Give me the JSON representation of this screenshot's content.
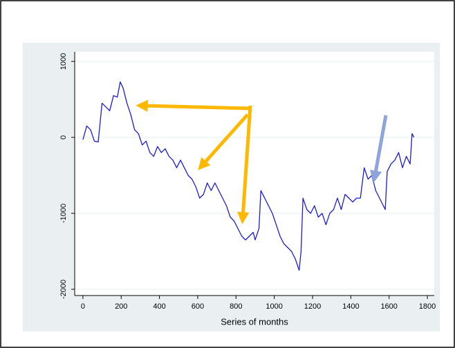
{
  "chart_data": {
    "type": "line",
    "x_label": "Series of months",
    "x": [
      0,
      20,
      40,
      60,
      80,
      100,
      120,
      140,
      160,
      180,
      195,
      210,
      230,
      250,
      270,
      290,
      310,
      330,
      350,
      370,
      390,
      410,
      430,
      450,
      470,
      490,
      510,
      530,
      550,
      570,
      590,
      610,
      630,
      650,
      670,
      690,
      710,
      730,
      750,
      770,
      790,
      810,
      830,
      850,
      870,
      890,
      900,
      920,
      930,
      950,
      970,
      990,
      1010,
      1030,
      1050,
      1070,
      1090,
      1110,
      1130,
      1140,
      1150,
      1170,
      1190,
      1210,
      1230,
      1250,
      1270,
      1290,
      1310,
      1330,
      1350,
      1370,
      1390,
      1410,
      1430,
      1450,
      1470,
      1490,
      1510,
      1530,
      1550,
      1570,
      1580,
      1590,
      1610,
      1630,
      1650,
      1670,
      1690,
      1710,
      1720,
      1730
    ],
    "series": [
      {
        "color": "#1a1adb",
        "values": [
          -30,
          150,
          100,
          -50,
          -60,
          450,
          400,
          350,
          550,
          530,
          730,
          650,
          450,
          300,
          100,
          50,
          -100,
          -50,
          -200,
          -250,
          -120,
          -200,
          -150,
          -250,
          -300,
          -400,
          -300,
          -400,
          -500,
          -550,
          -650,
          -800,
          -750,
          -600,
          -700,
          -600,
          -700,
          -800,
          -900,
          -1050,
          -1100,
          -1200,
          -1300,
          -1350,
          -1300,
          -1250,
          -1350,
          -1200,
          -700,
          -800,
          -900,
          -1000,
          -1150,
          -1300,
          -1400,
          -1450,
          -1500,
          -1600,
          -1750,
          -1500,
          -800,
          -950,
          -1000,
          -900,
          -1050,
          -1000,
          -1150,
          -1000,
          -950,
          -800,
          -950,
          -750,
          -800,
          -850,
          -800,
          -800,
          -400,
          -550,
          -500,
          -700,
          -800,
          -900,
          -950,
          -450,
          -350,
          -300,
          -200,
          -400,
          -250,
          -350,
          50,
          0
        ]
      }
    ],
    "xlim": [
      -43,
      1836
    ],
    "xticks": [
      0,
      200,
      400,
      600,
      800,
      1000,
      1200,
      1400,
      1600,
      1800
    ],
    "ylim": [
      -2082,
      1127
    ],
    "yticks": [
      -2000,
      -1000,
      0,
      1000
    ],
    "grid": true
  }
}
